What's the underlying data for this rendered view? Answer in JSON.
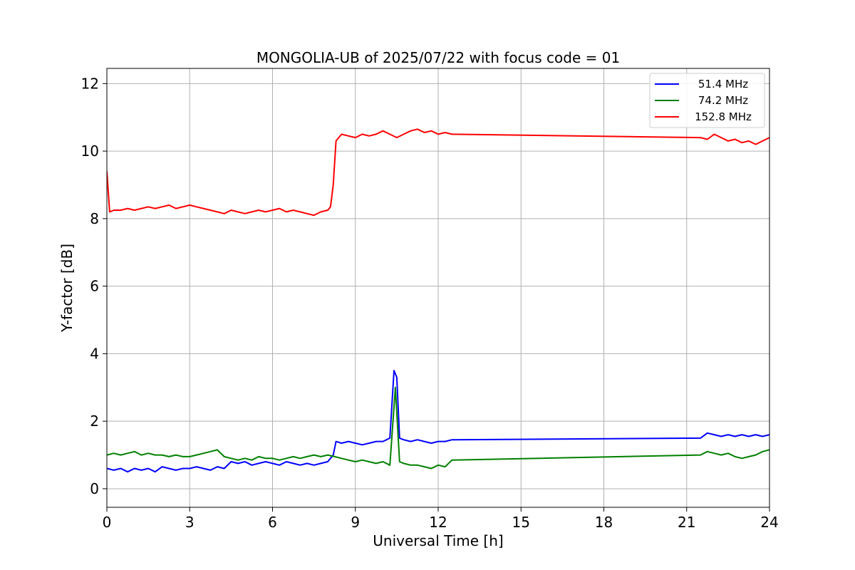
{
  "chart_data": {
    "type": "line",
    "title": "MONGOLIA-UB of 2025/07/22 with focus code = 01",
    "xlabel": "Universal Time [h]",
    "ylabel": "Y-factor [dB]",
    "xlim": [
      0,
      24
    ],
    "ylim": [
      -0.55,
      12.45
    ],
    "x_ticks": [
      0,
      3,
      6,
      9,
      12,
      15,
      18,
      21,
      24
    ],
    "y_ticks": [
      0,
      2,
      4,
      6,
      8,
      10,
      12
    ],
    "grid": true,
    "legend": "top-right",
    "series": [
      {
        "name": "51.4 MHz",
        "color": "#0000ff",
        "x": [
          0,
          0.25,
          0.5,
          0.75,
          1.0,
          1.25,
          1.5,
          1.75,
          2.0,
          2.25,
          2.5,
          2.75,
          3.0,
          3.25,
          3.5,
          3.75,
          4.0,
          4.25,
          4.5,
          4.75,
          5.0,
          5.25,
          5.5,
          5.75,
          6.0,
          6.25,
          6.5,
          6.75,
          7.0,
          7.25,
          7.5,
          7.75,
          8.0,
          8.2,
          8.3,
          8.5,
          8.75,
          9.0,
          9.25,
          9.5,
          9.75,
          10.0,
          10.25,
          10.4,
          10.5,
          10.6,
          10.75,
          11.0,
          11.25,
          11.5,
          11.75,
          12.0,
          12.25,
          12.5,
          21.5,
          21.75,
          22.0,
          22.25,
          22.5,
          22.75,
          23.0,
          23.25,
          23.5,
          23.75,
          24.0
        ],
        "y": [
          0.6,
          0.55,
          0.6,
          0.5,
          0.6,
          0.55,
          0.6,
          0.5,
          0.65,
          0.6,
          0.55,
          0.6,
          0.6,
          0.65,
          0.6,
          0.55,
          0.65,
          0.6,
          0.8,
          0.75,
          0.8,
          0.7,
          0.75,
          0.8,
          0.75,
          0.7,
          0.8,
          0.75,
          0.7,
          0.75,
          0.7,
          0.75,
          0.8,
          1.0,
          1.4,
          1.35,
          1.4,
          1.35,
          1.3,
          1.35,
          1.4,
          1.4,
          1.5,
          3.5,
          3.3,
          1.5,
          1.45,
          1.4,
          1.45,
          1.4,
          1.35,
          1.4,
          1.4,
          1.45,
          1.5,
          1.65,
          1.6,
          1.55,
          1.6,
          1.55,
          1.6,
          1.55,
          1.6,
          1.55,
          1.6
        ]
      },
      {
        "name": "74.2 MHz",
        "color": "#008000",
        "x": [
          0,
          0.25,
          0.5,
          0.75,
          1.0,
          1.25,
          1.5,
          1.75,
          2.0,
          2.25,
          2.5,
          2.75,
          3.0,
          3.25,
          3.5,
          3.75,
          4.0,
          4.25,
          4.5,
          4.75,
          5.0,
          5.25,
          5.5,
          5.75,
          6.0,
          6.25,
          6.5,
          6.75,
          7.0,
          7.25,
          7.5,
          7.75,
          8.0,
          8.25,
          8.5,
          8.75,
          9.0,
          9.25,
          9.5,
          9.75,
          10.0,
          10.25,
          10.45,
          10.6,
          10.75,
          11.0,
          11.25,
          11.5,
          11.75,
          12.0,
          12.25,
          12.5,
          21.5,
          21.75,
          22.0,
          22.25,
          22.5,
          22.75,
          23.0,
          23.25,
          23.5,
          23.75,
          24.0
        ],
        "y": [
          1.0,
          1.05,
          1.0,
          1.05,
          1.1,
          1.0,
          1.05,
          1.0,
          1.0,
          0.95,
          1.0,
          0.95,
          0.95,
          1.0,
          1.05,
          1.1,
          1.15,
          0.95,
          0.9,
          0.85,
          0.9,
          0.85,
          0.95,
          0.9,
          0.9,
          0.85,
          0.9,
          0.95,
          0.9,
          0.95,
          1.0,
          0.95,
          1.0,
          0.95,
          0.9,
          0.85,
          0.8,
          0.85,
          0.8,
          0.75,
          0.8,
          0.7,
          3.0,
          0.8,
          0.75,
          0.7,
          0.7,
          0.65,
          0.6,
          0.7,
          0.65,
          0.85,
          1.0,
          1.1,
          1.05,
          1.0,
          1.05,
          0.95,
          0.9,
          0.95,
          1.0,
          1.1,
          1.15
        ]
      },
      {
        "name": "152.8 MHz",
        "color": "#ff0000",
        "x": [
          0,
          0.1,
          0.25,
          0.5,
          0.75,
          1.0,
          1.25,
          1.5,
          1.75,
          2.0,
          2.25,
          2.5,
          2.75,
          3.0,
          3.25,
          3.5,
          3.75,
          4.0,
          4.25,
          4.5,
          4.75,
          5.0,
          5.25,
          5.5,
          5.75,
          6.0,
          6.25,
          6.5,
          6.75,
          7.0,
          7.25,
          7.5,
          7.75,
          8.0,
          8.1,
          8.2,
          8.3,
          8.5,
          8.75,
          9.0,
          9.25,
          9.5,
          9.75,
          10.0,
          10.25,
          10.5,
          10.75,
          11.0,
          11.25,
          11.5,
          11.75,
          12.0,
          12.25,
          12.5,
          21.5,
          21.75,
          22.0,
          22.25,
          22.5,
          22.75,
          23.0,
          23.25,
          23.5,
          23.75,
          24.0
        ],
        "y": [
          9.4,
          8.2,
          8.25,
          8.25,
          8.3,
          8.25,
          8.3,
          8.35,
          8.3,
          8.35,
          8.4,
          8.3,
          8.35,
          8.4,
          8.35,
          8.3,
          8.25,
          8.2,
          8.15,
          8.25,
          8.2,
          8.15,
          8.2,
          8.25,
          8.2,
          8.25,
          8.3,
          8.2,
          8.25,
          8.2,
          8.15,
          8.1,
          8.2,
          8.25,
          8.35,
          9.0,
          10.3,
          10.5,
          10.45,
          10.4,
          10.5,
          10.45,
          10.5,
          10.6,
          10.5,
          10.4,
          10.5,
          10.6,
          10.65,
          10.55,
          10.6,
          10.5,
          10.55,
          10.5,
          10.4,
          10.35,
          10.5,
          10.4,
          10.3,
          10.35,
          10.25,
          10.3,
          10.2,
          10.3,
          10.4
        ]
      }
    ]
  }
}
